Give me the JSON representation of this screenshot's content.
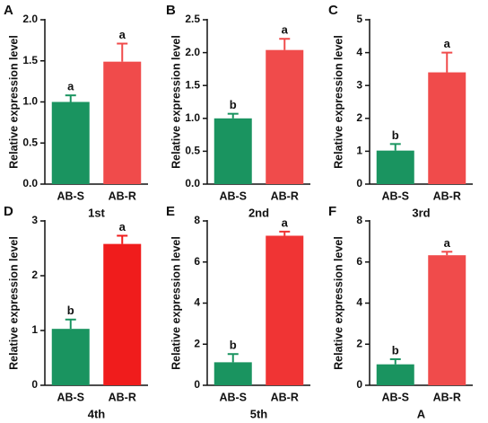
{
  "chart_data": [
    {
      "type": "bar",
      "panel": "A",
      "title": "1st",
      "ylabel": "Relative expression level",
      "categories": [
        "AB-S",
        "AB-R"
      ],
      "values": [
        1.0,
        1.49
      ],
      "errors": [
        0.08,
        0.22
      ],
      "annotations": [
        "a",
        "a"
      ],
      "colors": [
        "#1a9460",
        "#f04b4b"
      ],
      "ylim": [
        0,
        2.0
      ],
      "yticks": [
        {
          "value": 0,
          "label": "0.0"
        },
        0.5,
        {
          "value": 1,
          "label": "1.0"
        },
        1.5,
        {
          "value": 2,
          "label": "2.0"
        }
      ]
    },
    {
      "type": "bar",
      "panel": "B",
      "title": "2nd",
      "ylabel": "Relative expression level",
      "categories": [
        "AB-S",
        "AB-R"
      ],
      "values": [
        1.0,
        2.04
      ],
      "errors": [
        0.07,
        0.17
      ],
      "annotations": [
        "b",
        "a"
      ],
      "colors": [
        "#1a9460",
        "#f04b4b"
      ],
      "ylim": [
        0,
        2.5
      ],
      "yticks": [
        {
          "value": 0,
          "label": "0.0"
        },
        0.5,
        {
          "value": 1,
          "label": "1.0"
        },
        1.5,
        {
          "value": 2,
          "label": "2.0"
        },
        2.5
      ]
    },
    {
      "type": "bar",
      "panel": "C",
      "title": "3rd",
      "ylabel": "Relative expression level",
      "categories": [
        "AB-S",
        "AB-R"
      ],
      "values": [
        1.02,
        3.4
      ],
      "errors": [
        0.2,
        0.6
      ],
      "annotations": [
        "b",
        "a"
      ],
      "colors": [
        "#1a9460",
        "#f04b4b"
      ],
      "ylim": [
        0,
        5
      ],
      "yticks": [
        0,
        1,
        2,
        3,
        4,
        5
      ]
    },
    {
      "type": "bar",
      "panel": "D",
      "title": "4th",
      "ylabel": "Relative expression level",
      "categories": [
        "AB-S",
        "AB-R"
      ],
      "values": [
        1.03,
        2.58
      ],
      "errors": [
        0.17,
        0.15
      ],
      "annotations": [
        "b",
        "a"
      ],
      "colors": [
        "#1a9460",
        "#f01c1c"
      ],
      "ylim": [
        0,
        3
      ],
      "yticks": [
        0,
        1,
        2,
        3
      ]
    },
    {
      "type": "bar",
      "panel": "E",
      "title": "5th",
      "ylabel": "Relative expression level",
      "categories": [
        "AB-S",
        "AB-R"
      ],
      "values": [
        1.12,
        7.28
      ],
      "errors": [
        0.4,
        0.2
      ],
      "annotations": [
        "b",
        "a"
      ],
      "colors": [
        "#1a9460",
        "#f03434"
      ],
      "ylim": [
        0,
        8
      ],
      "yticks": [
        0,
        2,
        4,
        6,
        8
      ]
    },
    {
      "type": "bar",
      "panel": "F",
      "title": "A",
      "ylabel": "Relative expression level",
      "categories": [
        "AB-S",
        "AB-R"
      ],
      "values": [
        1.02,
        6.33
      ],
      "errors": [
        0.25,
        0.17
      ],
      "annotations": [
        "b",
        "a"
      ],
      "colors": [
        "#1a9460",
        "#f04b4b"
      ],
      "ylim": [
        0,
        8
      ],
      "yticks": [
        0,
        2,
        4,
        6,
        8
      ]
    }
  ]
}
